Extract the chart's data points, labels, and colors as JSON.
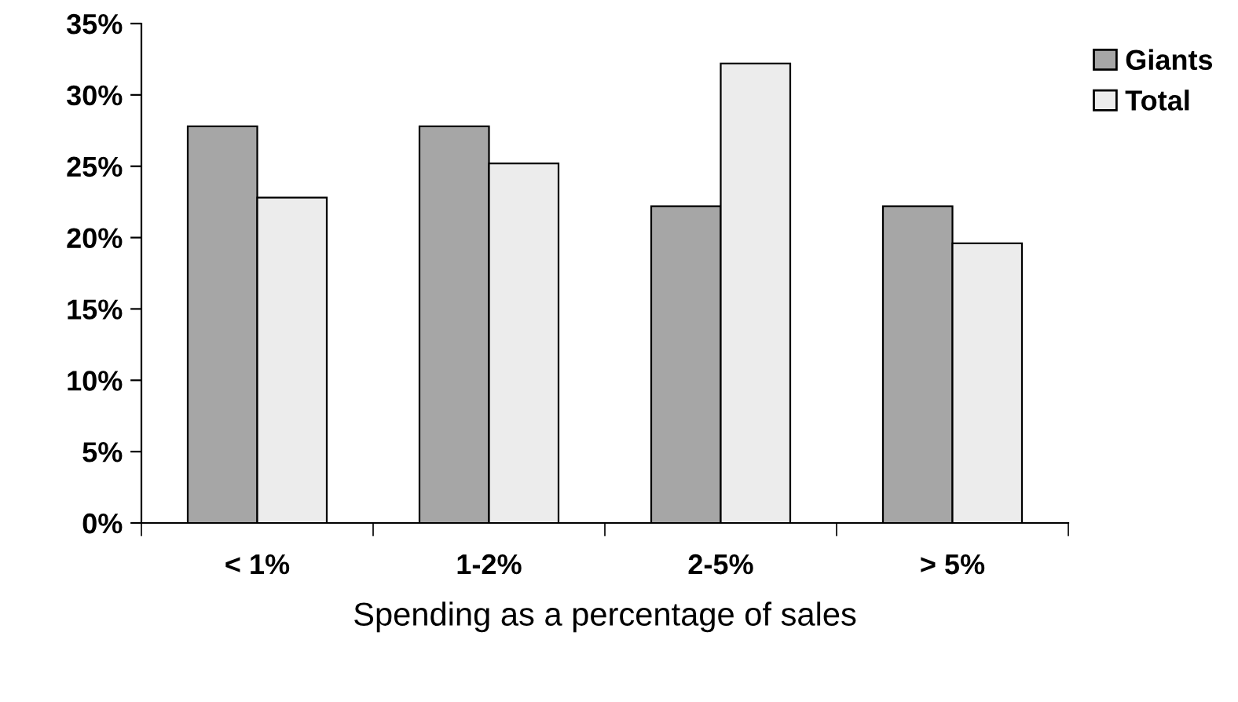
{
  "chart_data": {
    "type": "bar",
    "xlabel": "Spending as a percentage of sales",
    "categories": [
      "< 1%",
      "1-2%",
      "2-5%",
      "> 5%"
    ],
    "series": [
      {
        "name": "Giants",
        "color": "#a6a6a6",
        "values": [
          27.8,
          27.8,
          22.2,
          22.2
        ]
      },
      {
        "name": "Total",
        "color": "#ececec",
        "values": [
          22.8,
          25.2,
          32.2,
          19.6
        ]
      }
    ],
    "ylim": [
      0,
      35
    ],
    "yticks": [
      {
        "value": 0,
        "label": "0%"
      },
      {
        "value": 5,
        "label": "5%"
      },
      {
        "value": 10,
        "label": "10%"
      },
      {
        "value": 15,
        "label": "15%"
      },
      {
        "value": 20,
        "label": "20%"
      },
      {
        "value": 25,
        "label": "25%"
      },
      {
        "value": 30,
        "label": "30%"
      },
      {
        "value": 35,
        "label": "35%"
      }
    ],
    "grid": false,
    "legend": "top right"
  }
}
